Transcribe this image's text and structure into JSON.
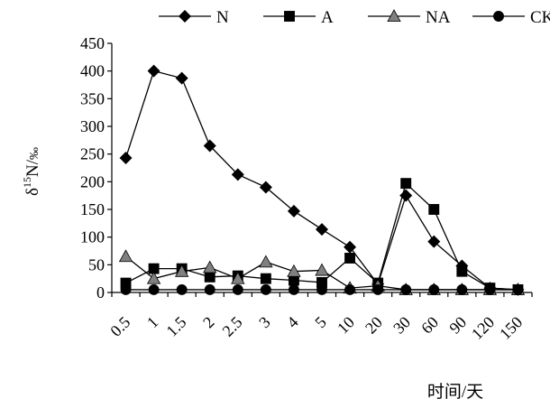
{
  "chart_data": {
    "type": "line",
    "title": "",
    "xlabel": "时间/天",
    "ylabel": "δ15N/‰",
    "ylabel_parts": {
      "delta": "δ",
      "sup": "15",
      "main": "N/",
      "permil": "‰"
    },
    "categories": [
      "0.5",
      "1",
      "1.5",
      "2",
      "2.5",
      "3",
      "4",
      "5",
      "10",
      "20",
      "30",
      "60",
      "90",
      "120",
      "150"
    ],
    "ylim": [
      0,
      450
    ],
    "yticks": [
      0,
      50,
      100,
      150,
      200,
      250,
      300,
      350,
      400,
      450
    ],
    "grid": false,
    "legend_position": "top",
    "series": [
      {
        "name": "N",
        "marker": "diamond",
        "color": "#000000",
        "values": [
          243,
          400,
          387,
          265,
          213,
          190,
          147,
          114,
          82,
          15,
          175,
          92,
          48,
          8,
          5
        ]
      },
      {
        "name": "A",
        "marker": "square",
        "color": "#000000",
        "values": [
          17,
          43,
          43,
          28,
          30,
          25,
          22,
          18,
          62,
          17,
          197,
          150,
          38,
          8,
          5
        ]
      },
      {
        "name": "NA",
        "marker": "triangle",
        "color": "#808080",
        "values": [
          65,
          25,
          38,
          45,
          25,
          55,
          38,
          40,
          8,
          12,
          5,
          5,
          5,
          5,
          5
        ]
      },
      {
        "name": "CK",
        "marker": "circle",
        "color": "#000000",
        "values": [
          5,
          5,
          5,
          5,
          5,
          5,
          5,
          5,
          5,
          5,
          5,
          5,
          5,
          5,
          5
        ]
      }
    ]
  }
}
